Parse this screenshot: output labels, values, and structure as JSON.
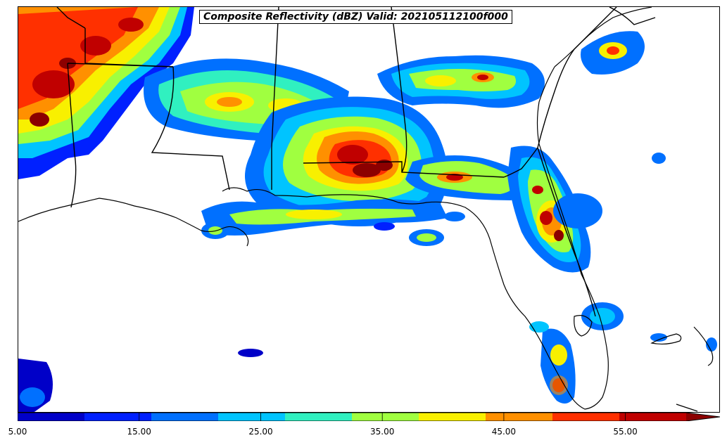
{
  "title": "Composite Reflectivity (dBZ) Valid: 202105112100f000",
  "colorbar": {
    "min": 5,
    "max": 60,
    "step": 5,
    "extend": "max",
    "colors": [
      "#0000c8",
      "#0020ff",
      "#0070ff",
      "#00c4ff",
      "#30f0c0",
      "#a0ff40",
      "#f8f000",
      "#ff9000",
      "#ff3000",
      "#c00000",
      "#8c0000"
    ],
    "tick_values": [
      5,
      15,
      25,
      35,
      45,
      55
    ],
    "tick_labels": [
      "5.00",
      "15.00",
      "25.00",
      "35.00",
      "45.00",
      "55.00"
    ]
  },
  "map": {
    "region": "Gulf Coast / Southeastern United States",
    "coastline_color": "#000000",
    "border_color": "#000000",
    "background_color": "#ffffff"
  }
}
